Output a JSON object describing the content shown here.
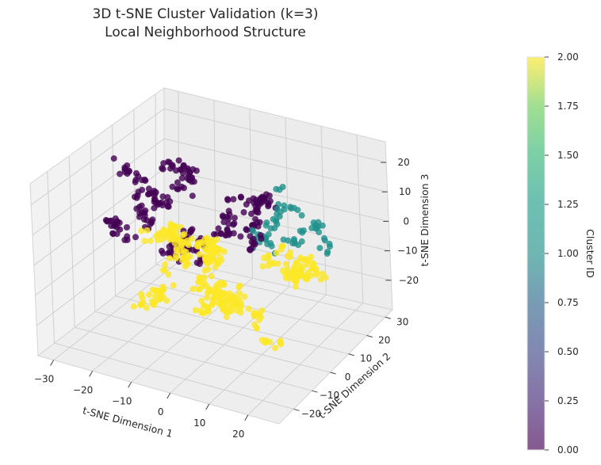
{
  "chart_data": {
    "type": "scatter",
    "projection": "3d",
    "title_lines": [
      "3D t-SNE Cluster Validation (k=3)",
      "Local Neighborhood Structure"
    ],
    "xlabel": "t-SNE Dimension 1",
    "ylabel": "t-SNE Dimension 2",
    "zlabel": "t-SNE Dimension 3",
    "x_ticks": [
      "−30",
      "−20",
      "−10",
      "0",
      "10",
      "20"
    ],
    "y_ticks": [
      "−20",
      "−10",
      "0",
      "10",
      "20",
      "30"
    ],
    "z_ticks": [
      "20",
      "10",
      "0",
      "−10",
      "−20"
    ],
    "grid": true,
    "colormap": "viridis",
    "colorbar": {
      "label": "Cluster ID",
      "range": [
        0.0,
        2.0
      ],
      "ticks": [
        "2.00",
        "1.75",
        "1.50",
        "1.25",
        "1.00",
        "0.75",
        "0.50",
        "0.25",
        "0.00"
      ]
    },
    "clusters": [
      {
        "id": 0,
        "color": "#440154",
        "center": [
          -14,
          2,
          2
        ],
        "spread": [
          9,
          9,
          8
        ],
        "approx_points": 900
      },
      {
        "id": 1,
        "color": "#21918c",
        "center": [
          5,
          18,
          12
        ],
        "spread": [
          8,
          5,
          6
        ],
        "approx_points": 250
      },
      {
        "id": 2,
        "color": "#fde725",
        "center": [
          8,
          -4,
          -4
        ],
        "spread": [
          8,
          9,
          8
        ],
        "approx_points": 1100
      }
    ]
  }
}
